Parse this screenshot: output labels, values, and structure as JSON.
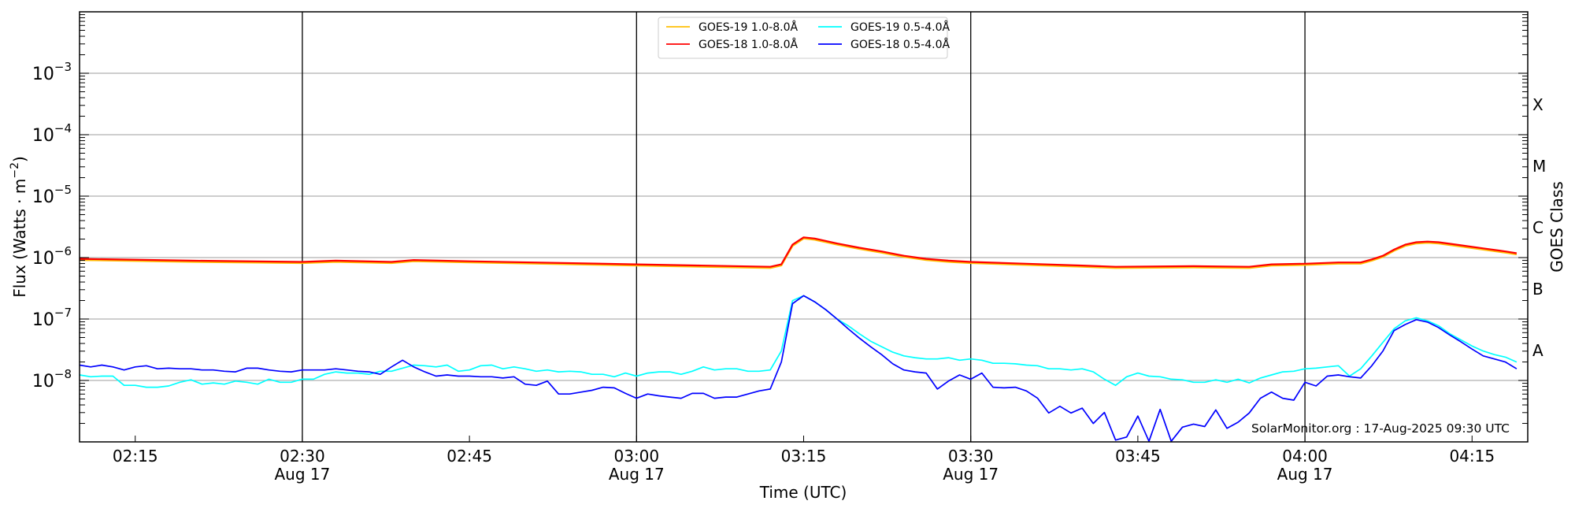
{
  "chart_data": {
    "type": "line",
    "title": "",
    "xlabel": "Time (UTC)",
    "ylabel": "Flux (Watts · m",
    "ylabel_exp": "−2",
    "ylabel_close": ")",
    "y2label": "GOES Class",
    "yscale": "log",
    "xlim": [
      "02:10",
      "04:20"
    ],
    "ylim_log10": [
      -9,
      -2
    ],
    "grid": "horizontal at decades",
    "legend_position": "top-center",
    "x_ticks": [
      {
        "t": "02:15",
        "label": "02:15",
        "date": ""
      },
      {
        "t": "02:30",
        "label": "02:30",
        "date": "Aug 17"
      },
      {
        "t": "02:45",
        "label": "02:45",
        "date": ""
      },
      {
        "t": "03:00",
        "label": "03:00",
        "date": "Aug 17"
      },
      {
        "t": "03:15",
        "label": "03:15",
        "date": ""
      },
      {
        "t": "03:30",
        "label": "03:30",
        "date": "Aug 17"
      },
      {
        "t": "03:45",
        "label": "03:45",
        "date": ""
      },
      {
        "t": "04:00",
        "label": "04:00",
        "date": "Aug 17"
      },
      {
        "t": "04:15",
        "label": "04:15",
        "date": ""
      }
    ],
    "vertical_lines": [
      "02:30",
      "03:00",
      "03:30",
      "04:00"
    ],
    "y_ticks": [
      {
        "log10": -3,
        "base": "10",
        "exp": "−3"
      },
      {
        "log10": -4,
        "base": "10",
        "exp": "−4"
      },
      {
        "log10": -5,
        "base": "10",
        "exp": "−5"
      },
      {
        "log10": -6,
        "base": "10",
        "exp": "−6"
      },
      {
        "log10": -7,
        "base": "10",
        "exp": "−7"
      },
      {
        "log10": -8,
        "base": "10",
        "exp": "−8"
      }
    ],
    "goes_classes": [
      {
        "label": "X",
        "log10": -3.5
      },
      {
        "label": "M",
        "log10": -4.5
      },
      {
        "label": "C",
        "log10": -5.5
      },
      {
        "label": "B",
        "log10": -6.5
      },
      {
        "label": "A",
        "log10": -7.5
      }
    ],
    "annotation": "SolarMonitor.org : 17-Aug-2025 09:30 UTC",
    "series": [
      {
        "name": "GOES-19 1.0-8.0Å",
        "color": "#ffc107",
        "t": [
          "02:10",
          "02:20",
          "02:30",
          "02:33",
          "02:38",
          "02:40",
          "02:45",
          "03:00",
          "03:12",
          "03:13",
          "03:14",
          "03:15",
          "03:16",
          "03:18",
          "03:20",
          "03:22",
          "03:24",
          "03:26",
          "03:28",
          "03:30",
          "03:35",
          "03:40",
          "03:43",
          "03:50",
          "03:55",
          "03:57",
          "04:00",
          "04:03",
          "04:05",
          "04:06",
          "04:07",
          "04:08",
          "04:09",
          "04:10",
          "04:11",
          "04:12",
          "04:14",
          "04:16",
          "04:18",
          "04:19"
        ],
        "log10_flux": [
          -6.04,
          -6.07,
          -6.09,
          -6.07,
          -6.09,
          -6.06,
          -6.08,
          -6.13,
          -6.17,
          -6.13,
          -5.81,
          -5.69,
          -5.71,
          -5.79,
          -5.86,
          -5.92,
          -5.99,
          -6.04,
          -6.07,
          -6.09,
          -6.12,
          -6.15,
          -6.17,
          -6.16,
          -6.17,
          -6.13,
          -6.12,
          -6.1,
          -6.1,
          -6.05,
          -5.99,
          -5.89,
          -5.81,
          -5.77,
          -5.76,
          -5.77,
          -5.82,
          -5.87,
          -5.92,
          -5.95
        ]
      },
      {
        "name": "GOES-18 1.0-8.0Å",
        "color": "#ff0000",
        "t": [
          "02:10",
          "02:20",
          "02:30",
          "02:33",
          "02:38",
          "02:40",
          "02:45",
          "03:00",
          "03:12",
          "03:13",
          "03:14",
          "03:15",
          "03:16",
          "03:18",
          "03:20",
          "03:22",
          "03:24",
          "03:26",
          "03:28",
          "03:30",
          "03:35",
          "03:40",
          "03:43",
          "03:50",
          "03:55",
          "03:57",
          "04:00",
          "04:03",
          "04:05",
          "04:06",
          "04:07",
          "04:08",
          "04:09",
          "04:10",
          "04:11",
          "04:12",
          "04:14",
          "04:16",
          "04:18",
          "04:19"
        ],
        "log10_flux": [
          -6.02,
          -6.05,
          -6.07,
          -6.05,
          -6.07,
          -6.04,
          -6.06,
          -6.11,
          -6.15,
          -6.11,
          -5.79,
          -5.67,
          -5.69,
          -5.77,
          -5.84,
          -5.9,
          -5.97,
          -6.02,
          -6.05,
          -6.07,
          -6.1,
          -6.13,
          -6.15,
          -6.14,
          -6.15,
          -6.11,
          -6.1,
          -6.08,
          -6.08,
          -6.03,
          -5.97,
          -5.87,
          -5.79,
          -5.75,
          -5.74,
          -5.75,
          -5.8,
          -5.85,
          -5.9,
          -5.93
        ]
      },
      {
        "name": "GOES-19 0.5-4.0Å",
        "color": "#00ffff",
        "t_start": "02:10",
        "cadence_min": 1,
        "log10_flux": [
          -7.91,
          -7.94,
          -7.93,
          -7.93,
          -8.08,
          -8.08,
          -8.11,
          -8.11,
          -8.09,
          -8.03,
          -7.99,
          -8.06,
          -8.04,
          -8.06,
          -8.01,
          -8.03,
          -8.06,
          -7.98,
          -8.03,
          -8.03,
          -7.98,
          -7.98,
          -7.9,
          -7.86,
          -7.88,
          -7.88,
          -7.9,
          -7.85,
          -7.85,
          -7.8,
          -7.75,
          -7.76,
          -7.78,
          -7.75,
          -7.85,
          -7.83,
          -7.76,
          -7.75,
          -7.81,
          -7.78,
          -7.81,
          -7.85,
          -7.83,
          -7.86,
          -7.85,
          -7.86,
          -7.9,
          -7.9,
          -7.94,
          -7.88,
          -7.93,
          -7.88,
          -7.86,
          -7.86,
          -7.9,
          -7.85,
          -7.78,
          -7.83,
          -7.81,
          -7.81,
          -7.85,
          -7.85,
          -7.83,
          -7.52,
          -6.7,
          -6.62,
          -6.72,
          -6.85,
          -7.0,
          -7.11,
          -7.24,
          -7.36,
          -7.45,
          -7.54,
          -7.6,
          -7.63,
          -7.65,
          -7.65,
          -7.63,
          -7.67,
          -7.65,
          -7.67,
          -7.72,
          -7.72,
          -7.73,
          -7.75,
          -7.76,
          -7.81,
          -7.81,
          -7.83,
          -7.81,
          -7.86,
          -7.98,
          -8.08,
          -7.94,
          -7.88,
          -7.93,
          -7.94,
          -7.98,
          -7.99,
          -8.03,
          -8.03,
          -7.99,
          -8.03,
          -7.98,
          -8.04,
          -7.96,
          -7.91,
          -7.86,
          -7.85,
          -7.81,
          -7.8,
          -7.78,
          -7.76,
          -7.93,
          -7.81,
          -7.6,
          -7.38,
          -7.16,
          -7.03,
          -6.98,
          -7.03,
          -7.11,
          -7.24,
          -7.34,
          -7.44,
          -7.52,
          -7.58,
          -7.62,
          -7.7
        ]
      },
      {
        "name": "GOES-18 0.5-4.0Å",
        "color": "#0000ff",
        "t_start": "02:10",
        "cadence_min": 1,
        "log10_flux": [
          -7.75,
          -7.78,
          -7.75,
          -7.78,
          -7.83,
          -7.78,
          -7.76,
          -7.81,
          -7.8,
          -7.81,
          -7.81,
          -7.83,
          -7.83,
          -7.85,
          -7.86,
          -7.8,
          -7.8,
          -7.83,
          -7.85,
          -7.86,
          -7.83,
          -7.83,
          -7.83,
          -7.81,
          -7.83,
          -7.85,
          -7.86,
          -7.9,
          -7.78,
          -7.67,
          -7.78,
          -7.86,
          -7.93,
          -7.91,
          -7.93,
          -7.93,
          -7.94,
          -7.94,
          -7.96,
          -7.94,
          -8.06,
          -8.08,
          -8.01,
          -8.22,
          -8.22,
          -8.19,
          -8.16,
          -8.11,
          -8.12,
          -8.21,
          -8.29,
          -8.22,
          -8.25,
          -8.27,
          -8.29,
          -8.21,
          -8.21,
          -8.29,
          -8.27,
          -8.27,
          -8.22,
          -8.17,
          -8.14,
          -7.7,
          -6.75,
          -6.62,
          -6.72,
          -6.85,
          -7.0,
          -7.16,
          -7.31,
          -7.45,
          -7.58,
          -7.73,
          -7.83,
          -7.86,
          -7.88,
          -8.14,
          -8.01,
          -7.91,
          -7.98,
          -7.88,
          -8.11,
          -8.12,
          -8.11,
          -8.17,
          -8.29,
          -8.53,
          -8.42,
          -8.53,
          -8.45,
          -8.7,
          -8.52,
          -8.97,
          -8.92,
          -8.58,
          -8.99,
          -8.47,
          -8.99,
          -8.76,
          -8.71,
          -8.75,
          -8.48,
          -8.78,
          -8.68,
          -8.53,
          -8.29,
          -8.19,
          -8.29,
          -8.32,
          -8.03,
          -8.09,
          -7.93,
          -7.91,
          -7.94,
          -7.96,
          -7.76,
          -7.52,
          -7.19,
          -7.09,
          -7.01,
          -7.05,
          -7.14,
          -7.26,
          -7.37,
          -7.49,
          -7.6,
          -7.65,
          -7.7,
          -7.81
        ]
      }
    ],
    "legend": [
      {
        "name": "GOES-19 1.0-8.0Å",
        "color": "#ffc107"
      },
      {
        "name": "GOES-19 0.5-4.0Å",
        "color": "#00ffff"
      },
      {
        "name": "GOES-18 1.0-8.0Å",
        "color": "#ff0000"
      },
      {
        "name": "GOES-18 0.5-4.0Å",
        "color": "#0000ff"
      }
    ]
  }
}
